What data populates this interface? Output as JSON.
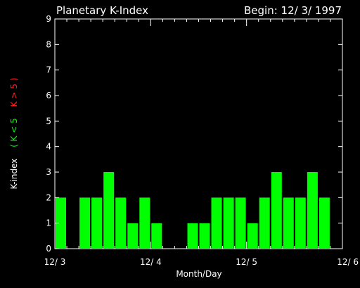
{
  "chart_data": {
    "type": "bar",
    "title": "Planetary K-Index",
    "subtitle": "Begin: 12/ 3/ 1997",
    "xlabel": "Month/Day",
    "ylabel_parts": [
      {
        "text": "K-index",
        "color": "#ffffff"
      },
      {
        "text": "( K < 5",
        "color": "#00ff00"
      },
      {
        "text": "K > 5 )",
        "color": "#ff2020"
      }
    ],
    "ylim": [
      0,
      9
    ],
    "yticks": [
      "0",
      "1",
      "2",
      "3",
      "4",
      "5",
      "6",
      "7",
      "8",
      "9"
    ],
    "xlim_days": [
      0,
      3
    ],
    "xticks": [
      {
        "label": "12/ 3",
        "day": 0
      },
      {
        "label": "12/ 4",
        "day": 1
      },
      {
        "label": "12/ 5",
        "day": 2
      },
      {
        "label": "12/ 6",
        "day": 3
      }
    ],
    "interval_hours": 3,
    "values": [
      2,
      0,
      2,
      2,
      3,
      2,
      1,
      2,
      1,
      0,
      0,
      1,
      1,
      2,
      2,
      2,
      1,
      2,
      3,
      2,
      2,
      3,
      2,
      0
    ],
    "bar_color": "#00ff00",
    "grid": false
  }
}
